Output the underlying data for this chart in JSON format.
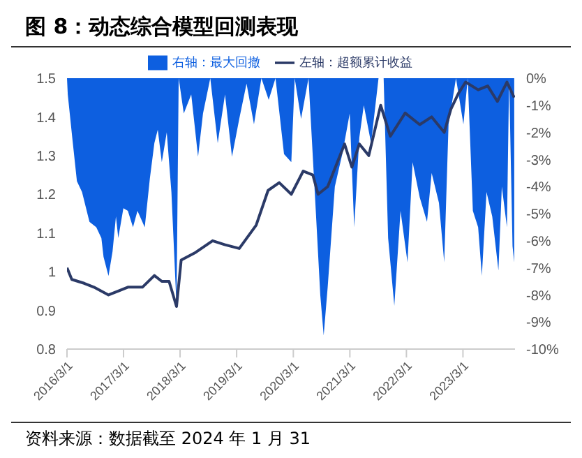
{
  "chart_data": {
    "type": "area",
    "title": "图 8：动态综合模型回测表现",
    "annotations": [
      "资料来源：数据截至 2024 年 1 月 31"
    ],
    "legend": "top",
    "xlim": [
      "2016-03-01",
      "2024-01-31"
    ],
    "xticks": [
      {
        "value": "2016-03-01",
        "label": "2016/3/1"
      },
      {
        "value": "2017-03-01",
        "label": "2017/3/1"
      },
      {
        "value": "2018-03-01",
        "label": "2018/3/1"
      },
      {
        "value": "2019-03-01",
        "label": "2019/3/1"
      },
      {
        "value": "2020-03-01",
        "label": "2020/3/1"
      },
      {
        "value": "2021-03-01",
        "label": "2021/3/1"
      },
      {
        "value": "2022-03-01",
        "label": "2022/3/1"
      },
      {
        "value": "2023-03-01",
        "label": "2023/3/1"
      }
    ],
    "ylim": [
      0.8,
      1.5
    ],
    "yticks": [
      0.8,
      0.9,
      1,
      1.1,
      1.2,
      1.3,
      1.4,
      1.5
    ],
    "y2lim": [
      -10,
      0
    ],
    "y2ticks": [
      {
        "value": -10,
        "label": "-10%"
      },
      {
        "value": -9,
        "label": "-9%"
      },
      {
        "value": -8,
        "label": "-8%"
      },
      {
        "value": -7,
        "label": "-7%"
      },
      {
        "value": -6,
        "label": "-6%"
      },
      {
        "value": -5,
        "label": "-5%"
      },
      {
        "value": -4,
        "label": "-4%"
      },
      {
        "value": -3,
        "label": "-3%"
      },
      {
        "value": -2,
        "label": "-2%"
      },
      {
        "value": -1,
        "label": "-1%"
      },
      {
        "value": 0,
        "label": "0%"
      }
    ],
    "series": [
      {
        "name": "右轴：最大回撤",
        "axis": "y2",
        "color": "#0d5fe0",
        "x": [
          "2016-03-01",
          "2016-03-06",
          "2016-04-04",
          "2016-05-04",
          "2016-06-06",
          "2016-07-24",
          "2016-09-06",
          "2016-10-09",
          "2016-10-23",
          "2016-11-24",
          "2016-12-20",
          "2017-01-11",
          "2017-01-26",
          "2017-02-28",
          "2017-03-29",
          "2017-05-01",
          "2017-05-30",
          "2017-07-16",
          "2017-08-18",
          "2017-09-16",
          "2017-10-08",
          "2017-11-03",
          "2017-12-05",
          "2018-01-04",
          "2018-02-06",
          "2018-02-20",
          "2018-03-25",
          "2018-05-12",
          "2018-06-25",
          "2018-07-27",
          "2018-09-12",
          "2018-10-30",
          "2018-12-16",
          "2019-01-30",
          "2019-03-18",
          "2019-05-04",
          "2019-06-21",
          "2019-08-08",
          "2019-09-24",
          "2019-11-07",
          "2020-01-01",
          "2020-02-17",
          "2020-03-10",
          "2020-04-20",
          "2020-06-07",
          "2020-07-24",
          "2020-08-22",
          "2020-09-13",
          "2020-10-09",
          "2020-11-24",
          "2021-01-11",
          "2021-02-28",
          "2021-03-29",
          "2021-05-01",
          "2021-05-30",
          "2021-07-16",
          "2021-09-02",
          "2021-10-05",
          "2021-11-03",
          "2021-12-13",
          "2022-01-22",
          "2022-03-08",
          "2022-04-10",
          "2022-05-26",
          "2022-07-12",
          "2022-08-11",
          "2022-09-27",
          "2022-10-31",
          "2022-11-28",
          "2023-01-15",
          "2023-03-04",
          "2023-04-01",
          "2023-05-04",
          "2023-06-07",
          "2023-07-01",
          "2023-07-31",
          "2023-09-06",
          "2023-10-16",
          "2023-11-07",
          "2023-12-10",
          "2023-12-24",
          "2024-01-15",
          "2024-01-26"
        ],
        "values": [
          0,
          -0.6,
          -2.2,
          -3.8,
          -4.2,
          -5.3,
          -5.5,
          -5.9,
          -6.6,
          -7.3,
          -6.4,
          -5.1,
          -5.9,
          -4.8,
          -4.9,
          -5.5,
          -4.9,
          -5.5,
          -3.7,
          -2.4,
          -1.9,
          -3.1,
          -2.0,
          -4.2,
          -8.4,
          0,
          -1.3,
          -0.6,
          -2.9,
          -1.3,
          0,
          -2.4,
          -0.6,
          -2.9,
          -1.5,
          -0.2,
          -1.7,
          0,
          -0.8,
          0,
          -2.8,
          -3.1,
          0,
          -1.5,
          0,
          -4.9,
          -8.0,
          -9.5,
          -7.7,
          -4.0,
          -2.8,
          -1.3,
          -5.5,
          -2.2,
          -1.0,
          -2.4,
          0,
          0,
          -5.9,
          -8.4,
          -4.9,
          -6.8,
          -3.1,
          -4.4,
          -5.3,
          -3.5,
          -4.6,
          -6.8,
          -1.7,
          0,
          -1.7,
          0,
          -4.9,
          -5.5,
          -7.3,
          -4.2,
          -5.1,
          -7.1,
          -4.0,
          -5.5,
          0,
          -6.2,
          -6.8
        ]
      },
      {
        "name": "左轴：超额累计收益",
        "type": "line",
        "color": "#2b3a67",
        "x": [
          "2016-03-01",
          "2016-04-01",
          "2016-06-20",
          "2016-08-22",
          "2016-11-24",
          "2017-01-26",
          "2017-03-29",
          "2017-07-01",
          "2017-09-16",
          "2017-11-03",
          "2017-12-20",
          "2018-02-06",
          "2018-03-08",
          "2018-06-10",
          "2018-09-27",
          "2018-12-13",
          "2019-03-18",
          "2019-07-05",
          "2019-09-20",
          "2019-12-01",
          "2020-02-17",
          "2020-05-04",
          "2020-07-05",
          "2020-08-08",
          "2020-10-09",
          "2021-01-26",
          "2021-03-14",
          "2021-05-01",
          "2021-07-01",
          "2021-09-16",
          "2021-11-17",
          "2022-02-21",
          "2022-05-26",
          "2022-08-11",
          "2022-10-31",
          "2022-12-13",
          "2023-01-30",
          "2023-03-18",
          "2023-06-07",
          "2023-08-08",
          "2023-10-09",
          "2023-12-10",
          "2024-01-26"
        ],
        "values": [
          1.01,
          0.98,
          0.97,
          0.96,
          0.94,
          0.95,
          0.96,
          0.96,
          0.99,
          0.975,
          0.975,
          0.91,
          1.03,
          1.05,
          1.08,
          1.07,
          1.06,
          1.12,
          1.21,
          1.23,
          1.2,
          1.26,
          1.25,
          1.2,
          1.22,
          1.33,
          1.27,
          1.33,
          1.3,
          1.43,
          1.35,
          1.41,
          1.38,
          1.4,
          1.36,
          1.42,
          1.46,
          1.49,
          1.47,
          1.48,
          1.44,
          1.49,
          1.45
        ]
      }
    ]
  }
}
